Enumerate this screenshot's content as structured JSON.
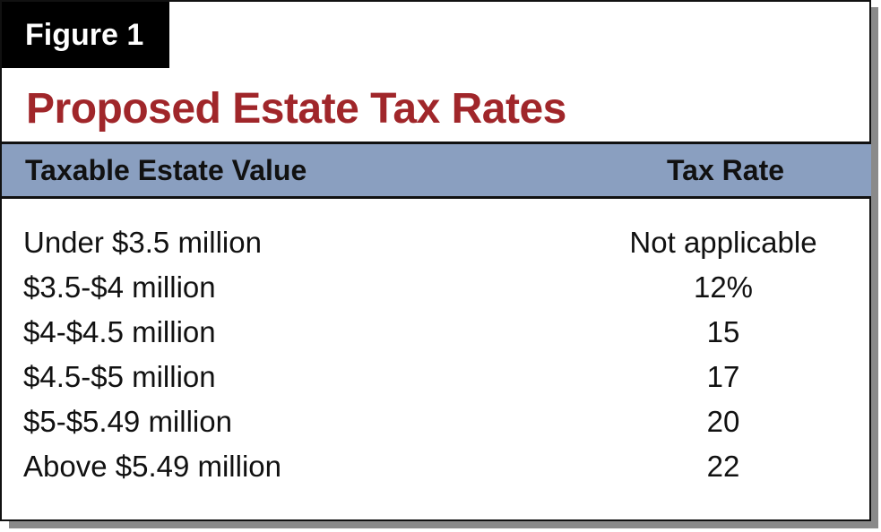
{
  "figure_label": "Figure 1",
  "title": "Proposed Estate Tax Rates",
  "table": {
    "headers": {
      "value": "Taxable Estate Value",
      "rate": "Tax Rate"
    },
    "rows": [
      {
        "value": "Under $3.5 million",
        "rate": "Not applicable"
      },
      {
        "value": "$3.5-$4 million",
        "rate": "12%"
      },
      {
        "value": "$4-$4.5 million",
        "rate": "15"
      },
      {
        "value": "$4.5-$5 million",
        "rate": "17"
      },
      {
        "value": "$5-$5.49 million",
        "rate": "20"
      },
      {
        "value": "Above $5.49 million",
        "rate": "22"
      }
    ]
  },
  "colors": {
    "title": "#a0262a",
    "header_band": "#8a9fc0",
    "label_bg": "#000000"
  }
}
